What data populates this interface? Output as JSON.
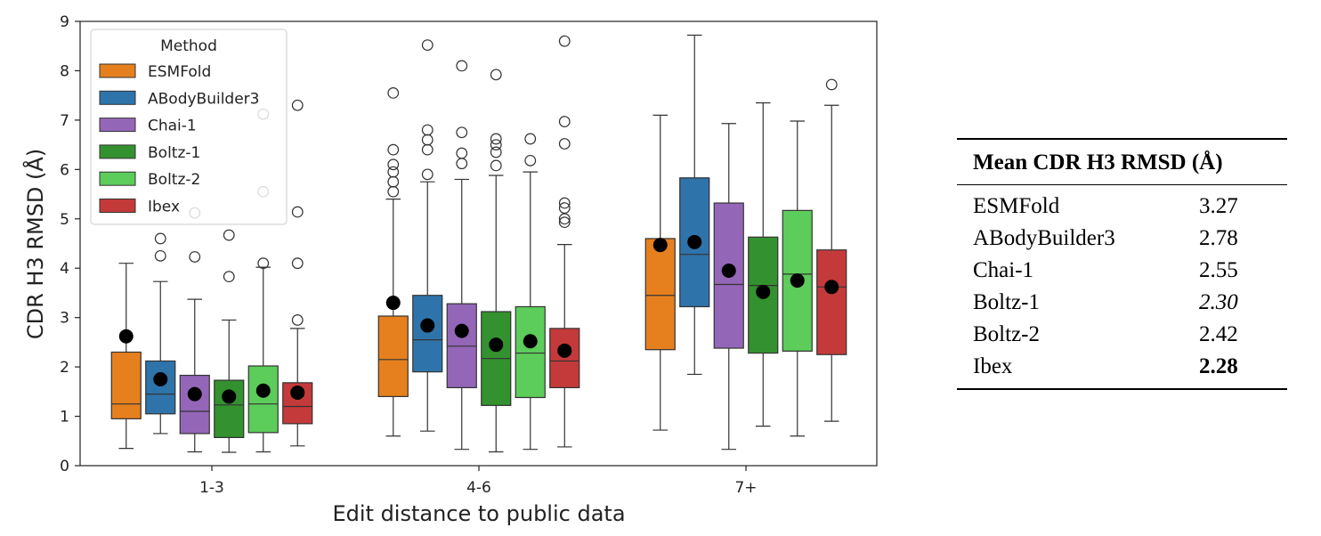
{
  "chart_data": {
    "type": "box",
    "ylabel": "CDR H3 RMSD (Å)",
    "xlabel": "Edit distance to public data",
    "ylim": [
      0,
      9
    ],
    "yticks": [
      "0",
      "1",
      "2",
      "3",
      "4",
      "5",
      "6",
      "7",
      "8",
      "9"
    ],
    "categories": [
      "1-3",
      "4-6",
      "7+"
    ],
    "legend": {
      "title": "Method",
      "placement": "upper-left"
    },
    "series": [
      {
        "name": "ESMFold",
        "color": "#e6801e",
        "boxes": [
          {
            "whislo": 0.35,
            "q1": 0.95,
            "med": 1.25,
            "q3": 2.3,
            "whishi": 4.1,
            "mean": 2.62,
            "fliers": []
          },
          {
            "whislo": 0.6,
            "q1": 1.4,
            "med": 2.15,
            "q3": 3.03,
            "whishi": 5.4,
            "mean": 3.3,
            "fliers": [
              5.55,
              5.75,
              5.95,
              6.1,
              6.4,
              7.55
            ]
          },
          {
            "whislo": 0.72,
            "q1": 2.35,
            "med": 3.45,
            "q3": 4.6,
            "whishi": 7.1,
            "mean": 4.47,
            "fliers": []
          }
        ]
      },
      {
        "name": "ABodyBuilder3",
        "color": "#2e74ab",
        "boxes": [
          {
            "whislo": 0.65,
            "q1": 1.05,
            "med": 1.45,
            "q3": 2.12,
            "whishi": 3.73,
            "mean": 1.75,
            "fliers": [
              4.25,
              4.6
            ]
          },
          {
            "whislo": 0.7,
            "q1": 1.9,
            "med": 2.55,
            "q3": 3.45,
            "whishi": 5.75,
            "mean": 2.84,
            "fliers": [
              5.9,
              6.4,
              6.6,
              6.8,
              8.52
            ]
          },
          {
            "whislo": 1.85,
            "q1": 3.22,
            "med": 4.28,
            "q3": 5.83,
            "whishi": 8.72,
            "mean": 4.53,
            "fliers": []
          }
        ]
      },
      {
        "name": "Chai-1",
        "color": "#9466b8",
        "boxes": [
          {
            "whislo": 0.28,
            "q1": 0.65,
            "med": 1.1,
            "q3": 1.83,
            "whishi": 3.37,
            "mean": 1.45,
            "fliers": [
              4.23,
              5.12
            ]
          },
          {
            "whislo": 0.33,
            "q1": 1.58,
            "med": 2.42,
            "q3": 3.28,
            "whishi": 5.8,
            "mean": 2.73,
            "fliers": [
              6.12,
              6.33,
              6.75,
              8.1
            ]
          },
          {
            "whislo": 0.33,
            "q1": 2.38,
            "med": 3.67,
            "q3": 5.32,
            "whishi": 6.93,
            "mean": 3.95,
            "fliers": []
          }
        ]
      },
      {
        "name": "Boltz-1",
        "color": "#34912f",
        "boxes": [
          {
            "whislo": 0.27,
            "q1": 0.57,
            "med": 1.23,
            "q3": 1.73,
            "whishi": 2.95,
            "mean": 1.4,
            "fliers": [
              3.83,
              4.67
            ]
          },
          {
            "whislo": 0.28,
            "q1": 1.22,
            "med": 2.17,
            "q3": 3.12,
            "whishi": 5.88,
            "mean": 2.45,
            "fliers": [
              6.08,
              6.35,
              6.5,
              6.62,
              7.92
            ]
          },
          {
            "whislo": 0.8,
            "q1": 2.28,
            "med": 3.65,
            "q3": 4.63,
            "whishi": 7.35,
            "mean": 3.52,
            "fliers": []
          }
        ]
      },
      {
        "name": "Boltz-2",
        "color": "#5ccc5a",
        "boxes": [
          {
            "whislo": 0.28,
            "q1": 0.67,
            "med": 1.25,
            "q3": 2.02,
            "whishi": 4.02,
            "mean": 1.52,
            "fliers": [
              4.1,
              5.55,
              7.12
            ]
          },
          {
            "whislo": 0.33,
            "q1": 1.38,
            "med": 2.28,
            "q3": 3.22,
            "whishi": 5.95,
            "mean": 2.52,
            "fliers": [
              6.18,
              6.62
            ]
          },
          {
            "whislo": 0.6,
            "q1": 2.32,
            "med": 3.88,
            "q3": 5.17,
            "whishi": 6.98,
            "mean": 3.75,
            "fliers": []
          }
        ]
      },
      {
        "name": "Ibex",
        "color": "#c43a3a",
        "boxes": [
          {
            "whislo": 0.4,
            "q1": 0.85,
            "med": 1.2,
            "q3": 1.68,
            "whishi": 2.78,
            "mean": 1.48,
            "fliers": [
              2.95,
              4.1,
              5.14,
              7.3
            ]
          },
          {
            "whislo": 0.38,
            "q1": 1.58,
            "med": 2.12,
            "q3": 2.78,
            "whishi": 4.48,
            "mean": 2.33,
            "fliers": [
              4.93,
              5.0,
              5.22,
              5.32,
              6.52,
              6.97,
              8.6
            ]
          },
          {
            "whislo": 0.9,
            "q1": 2.25,
            "med": 3.62,
            "q3": 4.37,
            "whishi": 7.3,
            "mean": 3.62,
            "fliers": [
              7.72
            ]
          }
        ]
      }
    ]
  },
  "table": {
    "header": "Mean CDR H3 RMSD (Å)",
    "rows": [
      {
        "method": "ESMFold",
        "value": "3.27",
        "style": "normal"
      },
      {
        "method": "ABodyBuilder3",
        "value": "2.78",
        "style": "normal"
      },
      {
        "method": "Chai-1",
        "value": "2.55",
        "style": "normal"
      },
      {
        "method": "Boltz-1",
        "value": "2.30",
        "style": "italic"
      },
      {
        "method": "Boltz-2",
        "value": "2.42",
        "style": "normal"
      },
      {
        "method": "Ibex",
        "value": "2.28",
        "style": "bold"
      }
    ]
  }
}
